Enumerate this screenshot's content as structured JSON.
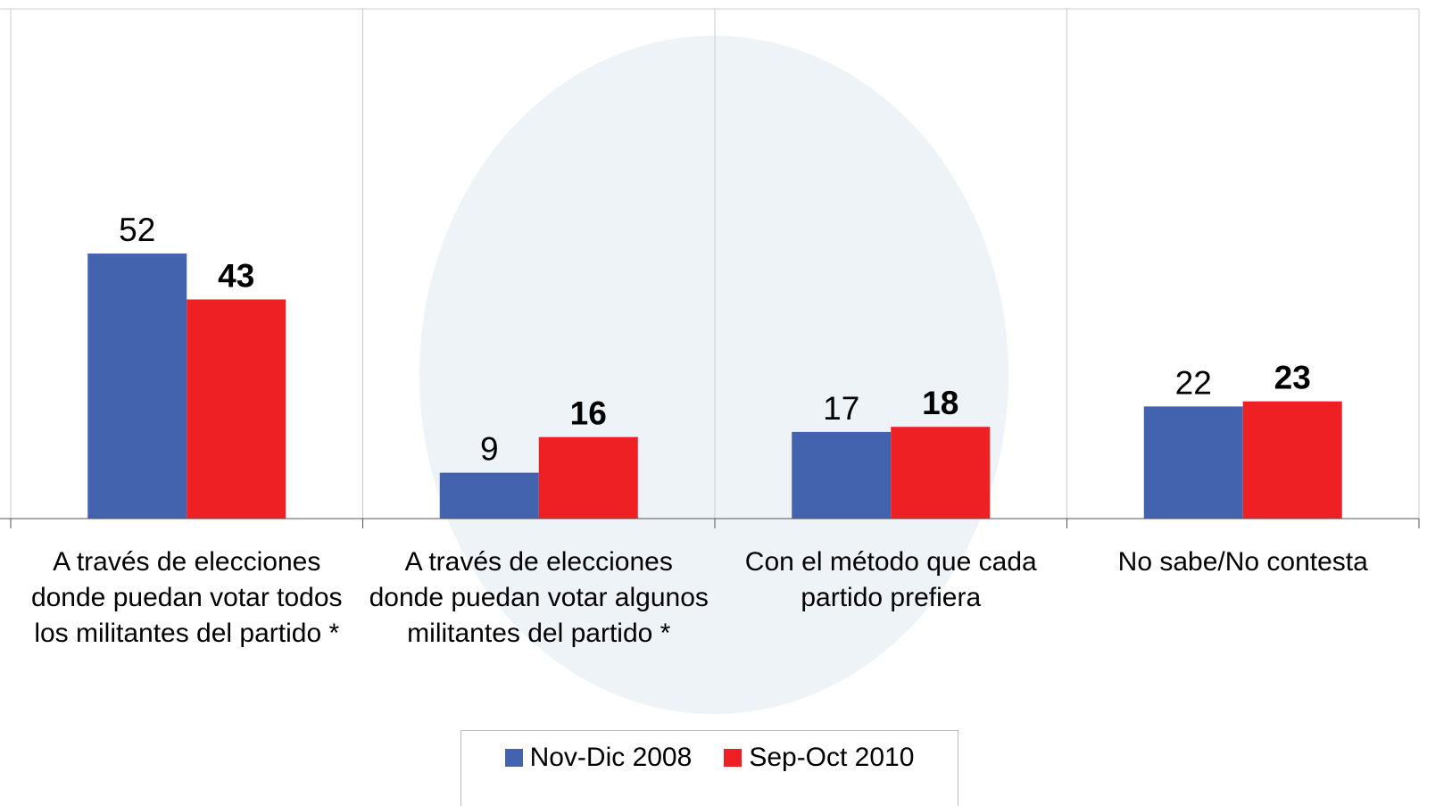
{
  "chart_data": {
    "type": "bar",
    "categories": [
      "A través de elecciones donde puedan votar todos los militantes del partido *",
      "A través de elecciones donde puedan votar algunos militantes del partido *",
      "Con el método que cada partido prefiera",
      "No sabe/No contesta"
    ],
    "series": [
      {
        "name": "Nov-Dic 2008",
        "color": "#4363ae",
        "values": [
          52,
          9,
          17,
          22
        ],
        "label_weight": "normal"
      },
      {
        "name": "Sep-Oct 2010",
        "color": "#ee2024",
        "values": [
          43,
          16,
          18,
          23
        ],
        "label_weight": "bold"
      }
    ],
    "ylim": [
      0,
      100
    ],
    "grid": true
  }
}
